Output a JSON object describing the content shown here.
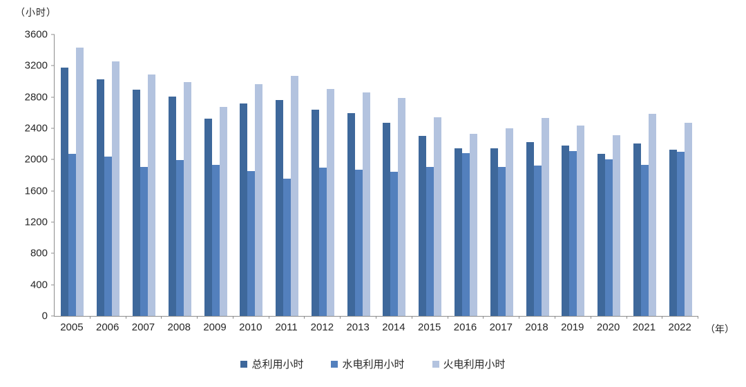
{
  "chart_data": {
    "type": "bar",
    "title": "",
    "unit_label": "（小时）",
    "x_unit_label": "（年）",
    "categories": [
      "2005",
      "2006",
      "2007",
      "2008",
      "2009",
      "2010",
      "2011",
      "2012",
      "2013",
      "2014",
      "2015",
      "2016",
      "2017",
      "2018",
      "2019",
      "2020",
      "2021",
      "2022"
    ],
    "series": [
      {
        "name": "总利用小时",
        "color": "#3E689B",
        "values": [
          3180,
          3025,
          2890,
          2810,
          2525,
          2715,
          2765,
          2640,
          2590,
          2475,
          2305,
          2145,
          2145,
          2220,
          2180,
          2070,
          2210,
          2130
        ]
      },
      {
        "name": "水电利用小时",
        "color": "#5380BD",
        "values": [
          2070,
          2035,
          1910,
          1990,
          1930,
          1850,
          1760,
          1900,
          1870,
          1845,
          1905,
          2080,
          1910,
          1920,
          2105,
          2005,
          1930,
          2100
        ]
      },
      {
        "name": "火电利用小时",
        "color": "#B3C3DF",
        "values": [
          3435,
          3255,
          3090,
          2990,
          2670,
          2965,
          3070,
          2905,
          2855,
          2790,
          2545,
          2330,
          2400,
          2530,
          2435,
          2315,
          2585,
          2475
        ]
      }
    ],
    "ylim": [
      0,
      3600
    ],
    "ytick_step": 400,
    "yticks": [
      0,
      400,
      800,
      1200,
      1600,
      2000,
      2400,
      2800,
      3200,
      3600
    ],
    "axis_color": "#8c8c8c",
    "text_color": "#262626",
    "legend_position": "bottom",
    "grid": false
  }
}
